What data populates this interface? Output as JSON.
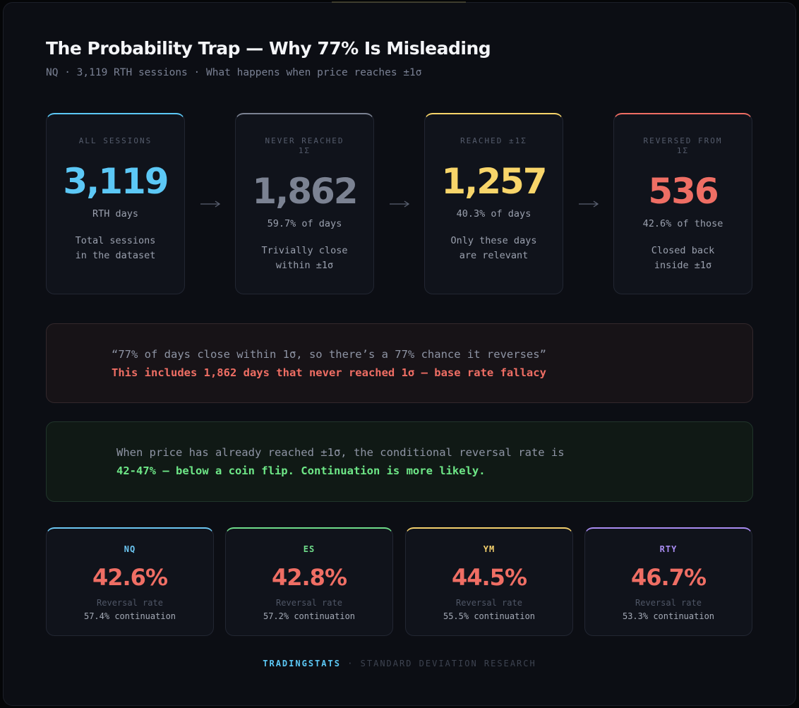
{
  "header": {
    "title": "The Probability Trap — Why 77% Is Misleading",
    "subtitle": "NQ · 3,119 RTH sessions · What happens when price reaches ±1σ"
  },
  "funnel": [
    {
      "label": "ALL SESSIONS",
      "value": "3,119",
      "unit": "RTH days",
      "description": "Total sessions in the dataset",
      "color": "#5cc8f6"
    },
    {
      "label": "NEVER REACHED 1Σ",
      "value": "1,862",
      "unit": "59.7% of days",
      "description": "Trivially close within ±1σ",
      "color": "#7b8292"
    },
    {
      "label": "REACHED ±1Σ",
      "value": "1,257",
      "unit": "40.3% of days",
      "description": "Only these days are relevant",
      "color": "#f8d56a"
    },
    {
      "label": "REVERSED FROM 1Σ",
      "value": "536",
      "unit": "42.6% of those",
      "description": "Closed back inside ±1σ",
      "color": "#ef6e64"
    }
  ],
  "misconception": {
    "quote": "“77% of days close within 1σ, so there’s a 77% chance it reverses”",
    "correction": "This includes 1,862 days that never reached 1σ — base rate fallacy"
  },
  "insight": {
    "text": "When price has already reached ±1σ, the conditional reversal rate is",
    "highlight": "42-47% — below a coin flip. Continuation is more likely."
  },
  "instruments": [
    {
      "symbol": "NQ",
      "rate": "42.6%",
      "rate_label": "Reversal rate",
      "continuation": "57.4% continuation",
      "color": "#6cc6f2"
    },
    {
      "symbol": "ES",
      "rate": "42.8%",
      "rate_label": "Reversal rate",
      "continuation": "57.2% continuation",
      "color": "#6fdc8a"
    },
    {
      "symbol": "YM",
      "rate": "44.5%",
      "rate_label": "Reversal rate",
      "continuation": "55.5% continuation",
      "color": "#f3cf6c"
    },
    {
      "symbol": "RTY",
      "rate": "46.7%",
      "rate_label": "Reversal rate",
      "continuation": "53.3% continuation",
      "color": "#a98cf2"
    }
  ],
  "footer": {
    "brand": "TRADINGSTATS",
    "separator": "·",
    "tagline": "STANDARD DEVIATION RESEARCH"
  }
}
